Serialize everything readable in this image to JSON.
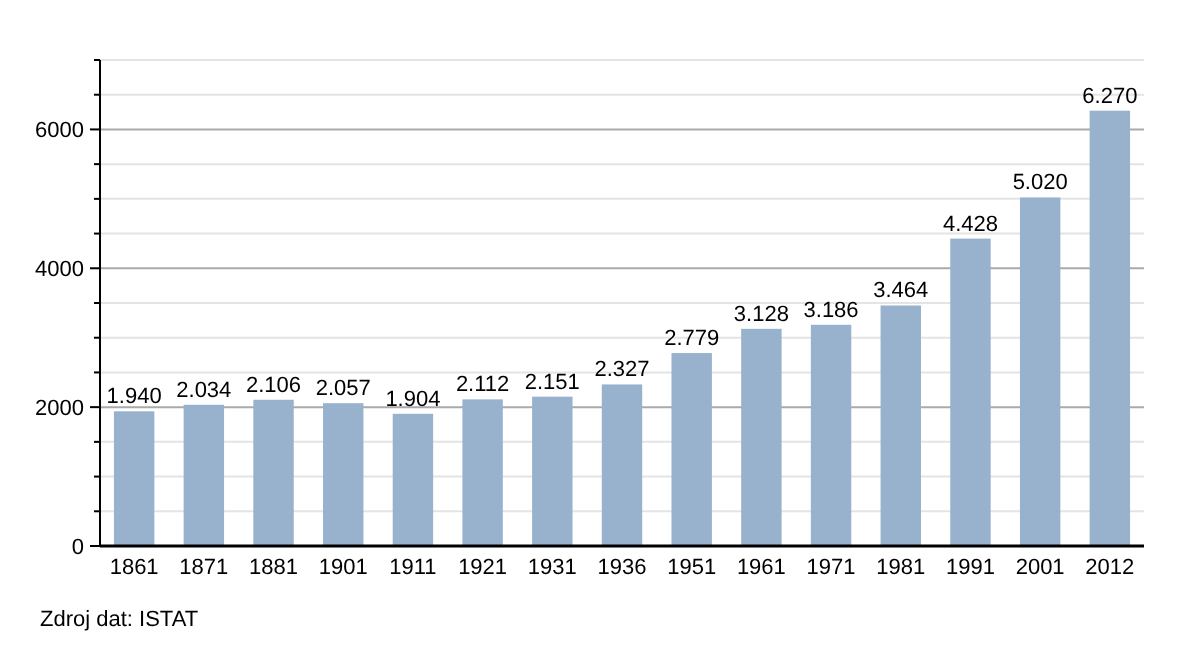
{
  "chart_data": {
    "type": "bar",
    "categories": [
      "1861",
      "1871",
      "1881",
      "1901",
      "1911",
      "1921",
      "1931",
      "1936",
      "1951",
      "1961",
      "1971",
      "1981",
      "1991",
      "2001",
      "2012"
    ],
    "values": [
      1940,
      2034,
      2106,
      2057,
      1904,
      2112,
      2151,
      2327,
      2779,
      3128,
      3186,
      3464,
      4428,
      5020,
      6270
    ],
    "value_labels": [
      "1.940",
      "2.034",
      "2.106",
      "2.057",
      "1.904",
      "2.112",
      "2.151",
      "2.327",
      "2.779",
      "3.128",
      "3.186",
      "3.464",
      "4.428",
      "5.020",
      "6.270"
    ],
    "color": "#98b2cd",
    "ylim": [
      0,
      7000
    ],
    "yticks": [
      0,
      {
        "value": 500,
        "label": null
      },
      {
        "value": 1000,
        "label": null
      },
      {
        "value": 1500,
        "label": null
      },
      2000,
      {
        "value": 2500,
        "label": null
      },
      {
        "value": 3000,
        "label": null
      },
      {
        "value": 3500,
        "label": null
      },
      4000,
      {
        "value": 4500,
        "label": null
      },
      {
        "value": 5000,
        "label": null
      },
      {
        "value": 5500,
        "label": null
      },
      6000,
      {
        "value": 6500,
        "label": null
      },
      {
        "value": 7000,
        "label": null
      }
    ],
    "grid": "y",
    "annotations": [
      "Zdroj dat: ISTAT"
    ]
  }
}
